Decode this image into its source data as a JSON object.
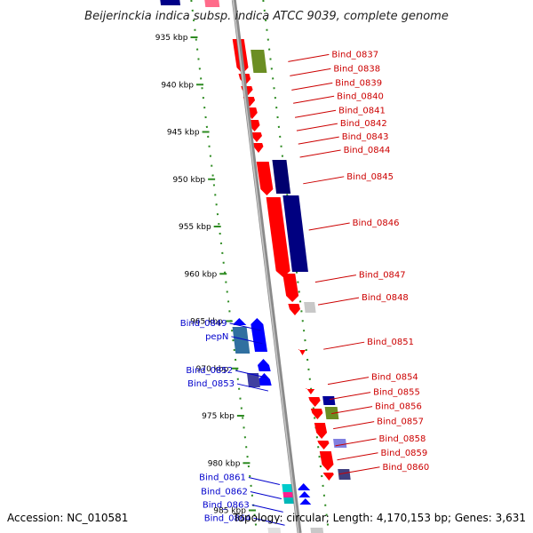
{
  "title": "Beijerinckia indica subsp. indica ATCC 9039, complete genome",
  "footer": {
    "accession": "Accession: NC_010581",
    "summary": "Topology: circular; Length: 4,170,153 bp; Genes: 3,631"
  },
  "colors": {
    "forward_label": "#0000cc",
    "reverse_label": "#cc0000",
    "gc_dots": "#2e8b22",
    "backbone": "#8a8a8a"
  },
  "kbp_ticks": [
    {
      "label": "935 kbp",
      "kb": 935
    },
    {
      "label": "940 kbp",
      "kb": 940
    },
    {
      "label": "945 kbp",
      "kb": 945
    },
    {
      "label": "950 kbp",
      "kb": 950
    },
    {
      "label": "955 kbp",
      "kb": 955
    },
    {
      "label": "960 kbp",
      "kb": 960
    },
    {
      "label": "965 kbp",
      "kb": 965
    },
    {
      "label": "970 kbp",
      "kb": 970
    },
    {
      "label": "975 kbp",
      "kb": 975
    },
    {
      "label": "980 kbp",
      "kb": 980
    },
    {
      "label": "985 kbp",
      "kb": 985
    }
  ],
  "reverse_genes": [
    {
      "name": "Bind_0837",
      "kb": 937.2
    },
    {
      "name": "Bind_0838",
      "kb": 938.7
    },
    {
      "name": "Bind_0839",
      "kb": 940.2
    },
    {
      "name": "Bind_0840",
      "kb": 941.6
    },
    {
      "name": "Bind_0841",
      "kb": 943.1
    },
    {
      "name": "Bind_0842",
      "kb": 944.5
    },
    {
      "name": "Bind_0843",
      "kb": 945.9
    },
    {
      "name": "Bind_0844",
      "kb": 947.3
    },
    {
      "name": "Bind_0845",
      "kb": 950.1
    },
    {
      "name": "Bind_0846",
      "kb": 955.0
    },
    {
      "name": "Bind_0847",
      "kb": 960.5
    },
    {
      "name": "Bind_0848",
      "kb": 962.9
    },
    {
      "name": "Bind_0851",
      "kb": 967.6
    },
    {
      "name": "Bind_0854",
      "kb": 971.3
    },
    {
      "name": "Bind_0855",
      "kb": 972.9
    },
    {
      "name": "Bind_0856",
      "kb": 974.4
    },
    {
      "name": "Bind_0857",
      "kb": 976.0
    },
    {
      "name": "Bind_0858",
      "kb": 977.8
    },
    {
      "name": "Bind_0859",
      "kb": 979.3
    },
    {
      "name": "Bind_0860",
      "kb": 980.8
    }
  ],
  "forward_genes": [
    {
      "name": "Bind_0849",
      "kb": 965.6
    },
    {
      "name": "pepN",
      "kb": 967.0
    },
    {
      "name": "Bind_0852",
      "kb": 970.6
    },
    {
      "name": "Bind_0853",
      "kb": 972.0
    },
    {
      "name": "Bind_0861",
      "kb": 981.9
    },
    {
      "name": "Bind_0862",
      "kb": 983.4
    },
    {
      "name": "Bind_0863",
      "kb": 984.8
    },
    {
      "name": "Bind_0864",
      "kb": 986.2
    }
  ]
}
